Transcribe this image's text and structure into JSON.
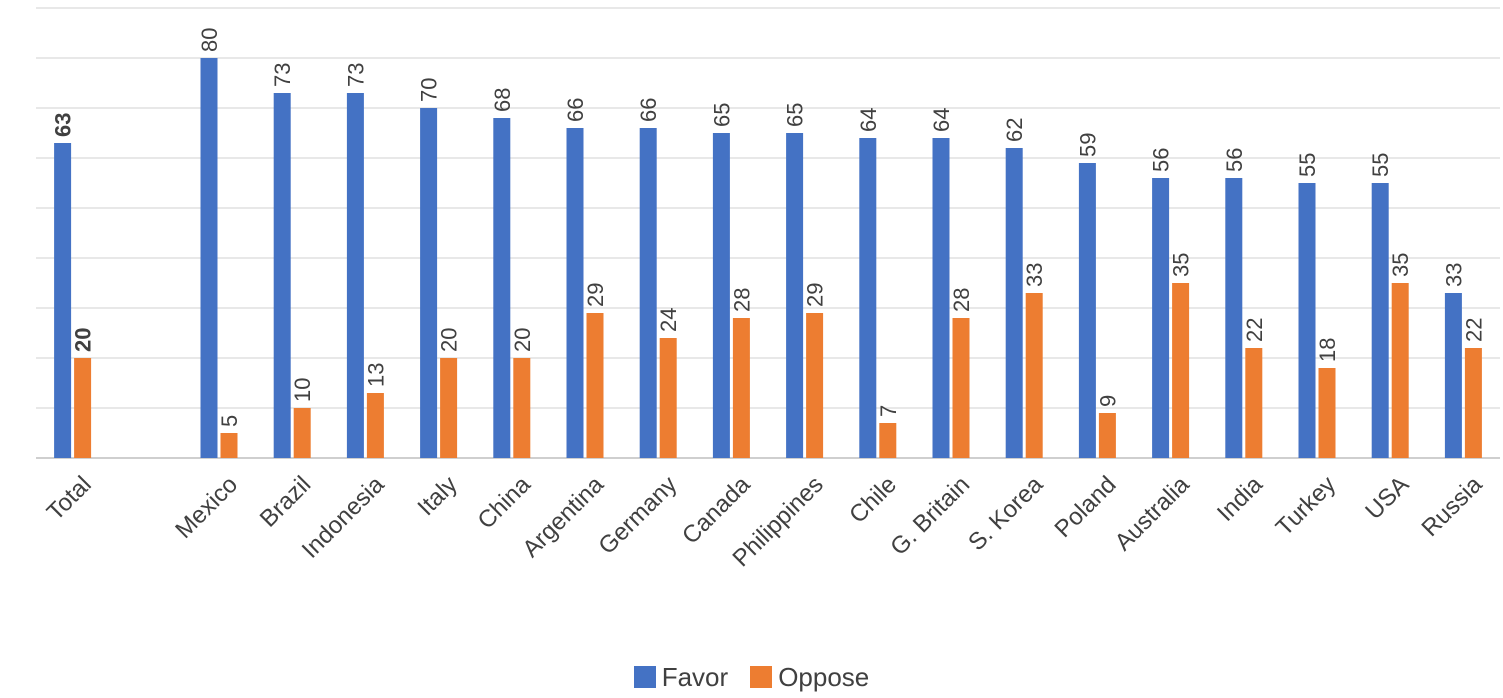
{
  "chart_data": {
    "type": "bar",
    "title": "",
    "xlabel": "",
    "ylabel": "",
    "ylim": [
      0,
      90
    ],
    "gridlines_every": 10,
    "grid": true,
    "y_tick_labels_shown": false,
    "legend_position": "bottom",
    "categories": [
      "Total",
      "",
      "Mexico",
      "Brazil",
      "Indonesia",
      "Italy",
      "China",
      "Argentina",
      "Germany",
      "Canada",
      "Philippines",
      "Chile",
      "G. Britain",
      "S. Korea",
      "Poland",
      "Australia",
      "India",
      "Turkey",
      "USA",
      "Russia"
    ],
    "series": [
      {
        "name": "Favor",
        "color": "#4472C4",
        "values": [
          63,
          null,
          80,
          73,
          73,
          70,
          68,
          66,
          66,
          65,
          65,
          64,
          64,
          62,
          59,
          56,
          56,
          55,
          55,
          33
        ]
      },
      {
        "name": "Oppose",
        "color": "#ED7D31",
        "values": [
          20,
          null,
          5,
          10,
          13,
          20,
          20,
          29,
          24,
          28,
          29,
          7,
          28,
          33,
          9,
          35,
          22,
          18,
          35,
          22
        ]
      }
    ],
    "bold_categories": [
      "Total"
    ]
  }
}
